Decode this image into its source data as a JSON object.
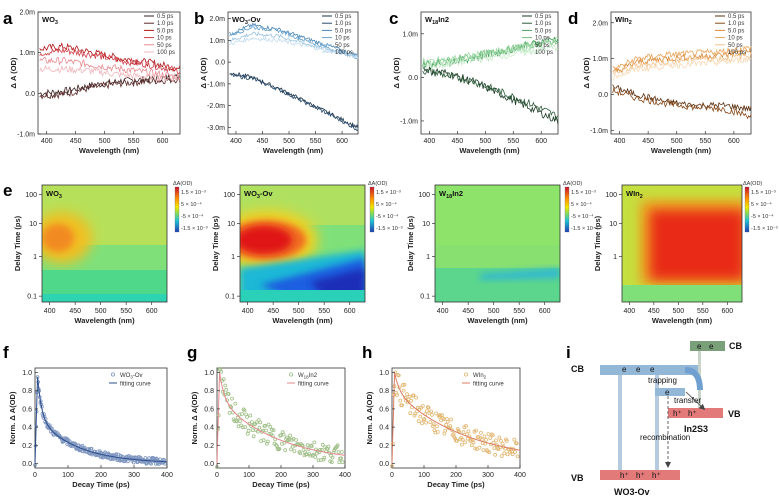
{
  "panel_letters": [
    "a",
    "b",
    "c",
    "d",
    "e",
    "f",
    "g",
    "h",
    "i"
  ],
  "axis_labels": {
    "delta_a": "Δ A (OD)",
    "wavelength": "Wavelength (nm)",
    "delay_time": "Delay Time (ps)",
    "norm_delta_a": "Norm. Δ A(OD)",
    "decay_time": "Decay Time (ps)"
  },
  "spectra_legend": [
    "0.5 ps",
    "1.0 ps",
    "5.0 ps",
    "10 ps",
    "50 ps",
    "100 ps"
  ],
  "colors": {
    "a": [
      "#3a2020",
      "#5a2828",
      "#b01818",
      "#cf3f4a",
      "#e58a90",
      "#f0b8bc"
    ],
    "b": [
      "#183048",
      "#2a4c6c",
      "#4a86b8",
      "#6aa3cc",
      "#98c2e0",
      "#c2dcef"
    ],
    "c": [
      "#1a3a24",
      "#2e5c3a",
      "#4aa060",
      "#72c07e",
      "#a2dcaa",
      "#c6ecca"
    ],
    "d": [
      "#5a3010",
      "#8a4a1a",
      "#d88a3a",
      "#e8a45a",
      "#f2c08a",
      "#f7d8b4"
    ],
    "f_scatter": "#7f96c0",
    "g_scatter": "#9fbf87",
    "h_scatter": "#e2b772",
    "f_fit": "#2b4c8c",
    "g_fit": "#e28a8a",
    "h_fit": "#d97c63"
  },
  "chart_data": [
    {
      "panel": "a",
      "type": "line",
      "title": "WO3",
      "xlabel": "Wavelength (nm)",
      "ylabel": "Δ A (OD)",
      "xlim": [
        385,
        630
      ],
      "ylim": [
        -1.0,
        2.0
      ],
      "x_ticks": [
        "400",
        "450",
        "500",
        "550",
        "600"
      ],
      "y_ticks": [
        {
          "v": -1,
          "t": "-1.0m"
        },
        {
          "v": 0,
          "t": "0.0"
        },
        {
          "v": 1,
          "t": "1.0m"
        },
        {
          "v": 2,
          "t": "2.0m"
        }
      ],
      "series": [
        {
          "name": "0.5 ps",
          "values": [
            [
              390,
              0.0
            ],
            [
              430,
              0.05
            ],
            [
              480,
              0.2
            ],
            [
              530,
              0.3
            ],
            [
              580,
              0.35
            ],
            [
              630,
              0.4
            ]
          ]
        },
        {
          "name": "1.0 ps",
          "values": [
            [
              390,
              -0.05
            ],
            [
              430,
              -0.02
            ],
            [
              480,
              0.15
            ],
            [
              530,
              0.25
            ],
            [
              580,
              0.3
            ],
            [
              630,
              0.35
            ]
          ]
        },
        {
          "name": "5.0 ps",
          "values": [
            [
              390,
              1.1
            ],
            [
              430,
              1.15
            ],
            [
              480,
              1.0
            ],
            [
              530,
              0.85
            ],
            [
              580,
              0.75
            ],
            [
              630,
              0.6
            ]
          ]
        },
        {
          "name": "10 ps",
          "values": [
            [
              390,
              1.0
            ],
            [
              430,
              1.05
            ],
            [
              480,
              0.95
            ],
            [
              530,
              0.8
            ],
            [
              580,
              0.7
            ],
            [
              630,
              0.55
            ]
          ]
        },
        {
          "name": "50 ps",
          "values": [
            [
              390,
              0.8
            ],
            [
              430,
              0.8
            ],
            [
              480,
              0.7
            ],
            [
              530,
              0.6
            ],
            [
              580,
              0.5
            ],
            [
              630,
              0.4
            ]
          ]
        },
        {
          "name": "100 ps",
          "values": [
            [
              390,
              0.6
            ],
            [
              430,
              0.6
            ],
            [
              480,
              0.55
            ],
            [
              530,
              0.45
            ],
            [
              580,
              0.4
            ],
            [
              630,
              0.35
            ]
          ]
        }
      ]
    },
    {
      "panel": "b",
      "type": "line",
      "title": "WO3-Ov",
      "xlabel": "Wavelength (nm)",
      "ylabel": "Δ A (OD)",
      "xlim": [
        385,
        630
      ],
      "ylim": [
        -3.3,
        2.3
      ],
      "x_ticks": [
        "400",
        "450",
        "500",
        "550",
        "600"
      ],
      "y_ticks": [
        {
          "v": 2,
          "t": "2.0m"
        },
        {
          "v": 1,
          "t": "1.0m"
        },
        {
          "v": 0,
          "t": "0.0"
        },
        {
          "v": -1,
          "t": "-1.0m"
        },
        {
          "v": -2,
          "t": "-2.0m"
        },
        {
          "v": -3,
          "t": "-3.0m"
        }
      ],
      "series": [
        {
          "name": "0.5 ps",
          "values": [
            [
              390,
              -0.5
            ],
            [
              430,
              -0.7
            ],
            [
              480,
              -1.2
            ],
            [
              530,
              -1.8
            ],
            [
              580,
              -2.4
            ],
            [
              630,
              -3.0
            ]
          ]
        },
        {
          "name": "1.0 ps",
          "values": [
            [
              390,
              -0.6
            ],
            [
              430,
              -0.75
            ],
            [
              480,
              -1.25
            ],
            [
              530,
              -1.85
            ],
            [
              580,
              -2.45
            ],
            [
              630,
              -3.1
            ]
          ]
        },
        {
          "name": "5.0 ps",
          "values": [
            [
              390,
              1.3
            ],
            [
              430,
              1.7
            ],
            [
              480,
              1.5
            ],
            [
              530,
              1.1
            ],
            [
              580,
              0.7
            ],
            [
              630,
              0.3
            ]
          ]
        },
        {
          "name": "10 ps",
          "values": [
            [
              390,
              1.25
            ],
            [
              430,
              1.6
            ],
            [
              480,
              1.45
            ],
            [
              530,
              1.0
            ],
            [
              580,
              0.6
            ],
            [
              630,
              0.2
            ]
          ]
        },
        {
          "name": "50 ps",
          "values": [
            [
              390,
              1.0
            ],
            [
              430,
              1.3
            ],
            [
              480,
              1.2
            ],
            [
              530,
              0.85
            ],
            [
              580,
              0.55
            ],
            [
              630,
              0.25
            ]
          ]
        },
        {
          "name": "100 ps",
          "values": [
            [
              390,
              0.85
            ],
            [
              430,
              1.1
            ],
            [
              480,
              1.0
            ],
            [
              530,
              0.75
            ],
            [
              580,
              0.5
            ],
            [
              630,
              0.25
            ]
          ]
        }
      ]
    },
    {
      "panel": "c",
      "type": "line",
      "title": "W18In2",
      "xlabel": "Wavelength (nm)",
      "ylabel": "Δ A (OD)",
      "xlim": [
        385,
        630
      ],
      "ylim": [
        -1.3,
        1.5
      ],
      "x_ticks": [
        "400",
        "450",
        "500",
        "550",
        "600"
      ],
      "y_ticks": [
        {
          "v": 1,
          "t": "1.0m"
        },
        {
          "v": 0,
          "t": "0.0"
        },
        {
          "v": -1,
          "t": "-1.0m"
        }
      ],
      "series": [
        {
          "name": "0.5 ps",
          "values": [
            [
              390,
              0.2
            ],
            [
              430,
              0.1
            ],
            [
              480,
              -0.1
            ],
            [
              530,
              -0.4
            ],
            [
              580,
              -0.7
            ],
            [
              630,
              -1.0
            ]
          ]
        },
        {
          "name": "1.0 ps",
          "values": [
            [
              390,
              0.15
            ],
            [
              430,
              0.05
            ],
            [
              480,
              -0.1
            ],
            [
              530,
              -0.35
            ],
            [
              580,
              -0.6
            ],
            [
              630,
              -0.9
            ]
          ]
        },
        {
          "name": "5.0 ps",
          "values": [
            [
              390,
              0.3
            ],
            [
              430,
              0.35
            ],
            [
              480,
              0.45
            ],
            [
              530,
              0.6
            ],
            [
              580,
              0.75
            ],
            [
              630,
              0.9
            ]
          ]
        },
        {
          "name": "10 ps",
          "values": [
            [
              390,
              0.3
            ],
            [
              430,
              0.35
            ],
            [
              480,
              0.5
            ],
            [
              530,
              0.6
            ],
            [
              580,
              0.75
            ],
            [
              630,
              0.85
            ]
          ]
        },
        {
          "name": "50 ps",
          "values": [
            [
              390,
              0.35
            ],
            [
              430,
              0.4
            ],
            [
              480,
              0.5
            ],
            [
              530,
              0.6
            ],
            [
              580,
              0.7
            ],
            [
              630,
              0.85
            ]
          ]
        },
        {
          "name": "100 ps",
          "values": [
            [
              390,
              0.25
            ],
            [
              430,
              0.3
            ],
            [
              480,
              0.4
            ],
            [
              530,
              0.5
            ],
            [
              580,
              0.6
            ],
            [
              630,
              0.7
            ]
          ]
        }
      ]
    },
    {
      "panel": "d",
      "type": "line",
      "title": "WIn2",
      "xlabel": "Wavelength (nm)",
      "ylabel": "Δ A (OD)",
      "xlim": [
        385,
        630
      ],
      "ylim": [
        -1.1,
        2.3
      ],
      "x_ticks": [
        "400",
        "450",
        "500",
        "550",
        "600"
      ],
      "y_ticks": [
        {
          "v": 2,
          "t": "2.0m"
        },
        {
          "v": 1,
          "t": "1.0m"
        },
        {
          "v": 0,
          "t": "0.0"
        },
        {
          "v": -1,
          "t": "-1.0m"
        }
      ],
      "series": [
        {
          "name": "0.5 ps",
          "values": [
            [
              390,
              0.2
            ],
            [
              430,
              0.0
            ],
            [
              480,
              -0.2
            ],
            [
              530,
              -0.3
            ],
            [
              580,
              -0.3
            ],
            [
              630,
              -0.4
            ]
          ]
        },
        {
          "name": "1.0 ps",
          "values": [
            [
              390,
              0.1
            ],
            [
              430,
              -0.1
            ],
            [
              480,
              -0.25
            ],
            [
              530,
              -0.35
            ],
            [
              580,
              -0.4
            ],
            [
              630,
              -0.6
            ]
          ]
        },
        {
          "name": "5.0 ps",
          "values": [
            [
              390,
              0.6
            ],
            [
              430,
              0.9
            ],
            [
              480,
              1.0
            ],
            [
              530,
              1.05
            ],
            [
              580,
              1.1
            ],
            [
              630,
              1.2
            ]
          ]
        },
        {
          "name": "10 ps",
          "values": [
            [
              390,
              0.7
            ],
            [
              430,
              1.0
            ],
            [
              480,
              1.1
            ],
            [
              530,
              1.15
            ],
            [
              580,
              1.2
            ],
            [
              630,
              1.3
            ]
          ]
        },
        {
          "name": "50 ps",
          "values": [
            [
              390,
              0.6
            ],
            [
              430,
              0.8
            ],
            [
              480,
              0.9
            ],
            [
              530,
              1.0
            ],
            [
              580,
              1.0
            ],
            [
              630,
              1.1
            ]
          ]
        },
        {
          "name": "100 ps",
          "values": [
            [
              390,
              0.5
            ],
            [
              430,
              0.7
            ],
            [
              480,
              0.8
            ],
            [
              530,
              0.85
            ],
            [
              580,
              0.9
            ],
            [
              630,
              1.0
            ]
          ]
        }
      ]
    },
    {
      "panel": "e1",
      "type": "heatmap",
      "title": "WO3",
      "xlabel": "Wavelength (nm)",
      "ylabel": "Delay Time (ps)",
      "x_ticks": [
        "400",
        "450",
        "500",
        "550",
        "600"
      ],
      "y_ticks": [
        "100",
        "10",
        "1",
        "0.1"
      ],
      "colorbar": {
        "title": "ΔA(OD)",
        "ticks": [
          "1.5 × 10⁻³",
          "5 × 10⁻⁴",
          "-5 × 10⁻⁴",
          "-1.5 × 10⁻³"
        ]
      }
    },
    {
      "panel": "e2",
      "type": "heatmap",
      "title": "WO3-Ov",
      "xlabel": "Wavelength (nm)",
      "ylabel": "Delay Time (ps)",
      "x_ticks": [
        "400",
        "450",
        "500",
        "550",
        "600"
      ],
      "y_ticks": [
        "100",
        "10",
        "1",
        "0.1"
      ],
      "colorbar": {
        "title": "ΔA(OD)",
        "ticks": [
          "1.5 × 10⁻³",
          "5 × 10⁻⁴",
          "-5 × 10⁻⁴",
          "-1.5 × 10⁻³"
        ]
      }
    },
    {
      "panel": "e3",
      "type": "heatmap",
      "title": "W18In2",
      "xlabel": "Wavelength (nm)",
      "ylabel": "Delay Time (ps)",
      "x_ticks": [
        "400",
        "450",
        "500",
        "550",
        "600"
      ],
      "y_ticks": [
        "100",
        "10",
        "1",
        "0.1"
      ],
      "colorbar": {
        "title": "ΔA(OD)",
        "ticks": [
          "1.5 × 10⁻³",
          "5 × 10⁻⁴",
          "-5 × 10⁻⁴",
          "-1.5 × 10⁻³"
        ]
      }
    },
    {
      "panel": "e4",
      "type": "heatmap",
      "title": "WIn2",
      "xlabel": "Wavelength (nm)",
      "ylabel": "Delay Time (ps)",
      "x_ticks": [
        "400",
        "450",
        "500",
        "550",
        "600"
      ],
      "y_ticks": [
        "100",
        "10",
        "1"
      ],
      "colorbar": {
        "title": "ΔA(OD)",
        "ticks": [
          "1.5 × 10⁻³",
          "5 × 10⁻⁴",
          "-5 × 10⁻⁴",
          "-1.5 × 10⁻³"
        ]
      }
    },
    {
      "panel": "f",
      "type": "scatter",
      "xlabel": "Decay Time (ps)",
      "ylabel": "Norm. Δ A(OD)",
      "xlim": [
        0,
        400
      ],
      "ylim": [
        -0.05,
        1.05
      ],
      "x_ticks": [
        "0",
        "100",
        "200",
        "300",
        "400"
      ],
      "y_ticks": [
        "0.0",
        "0.2",
        "0.4",
        "0.6",
        "0.8",
        "1.0"
      ],
      "legend": [
        "WO3-Ov",
        "fitting curve"
      ],
      "fit": {
        "A1": 0.45,
        "tau1": 12,
        "A2": 0.5,
        "tau2": 120,
        "peak_ps": 8
      }
    },
    {
      "panel": "g",
      "type": "scatter",
      "xlabel": "Decay Time (ps)",
      "ylabel": "Norm. Δ A(OD)",
      "xlim": [
        0,
        400
      ],
      "ylim": [
        -0.05,
        1.05
      ],
      "x_ticks": [
        "0",
        "100",
        "200",
        "300",
        "400"
      ],
      "y_ticks": [
        "0.0",
        "0.2",
        "0.4",
        "0.6",
        "0.8",
        "1.0"
      ],
      "legend": [
        "W18In2",
        "fitting curve"
      ],
      "fit": {
        "A1": 0.3,
        "tau1": 15,
        "A2": 0.7,
        "tau2": 190,
        "peak_ps": 8
      }
    },
    {
      "panel": "h",
      "type": "scatter",
      "xlabel": "Decay Time (ps)",
      "ylabel": "Norm. Δ A(OD)",
      "xlim": [
        0,
        400
      ],
      "ylim": [
        -0.05,
        1.05
      ],
      "x_ticks": [
        "0",
        "100",
        "200",
        "300",
        "400"
      ],
      "y_ticks": [
        "0.0",
        "0.2",
        "0.4",
        "0.6",
        "0.8",
        "1.0"
      ],
      "legend": [
        "WIn2",
        "fitting curve"
      ],
      "fit": {
        "A1": 0.2,
        "tau1": 15,
        "A2": 0.8,
        "tau2": 230,
        "peak_ps": 8
      }
    }
  ],
  "diagram_i": {
    "cb_left": "CB",
    "vb_left": "VB",
    "cb_right": "CB",
    "vb_right": "VB",
    "trapping": "trapping",
    "transfer": "transfer",
    "recombination": "recombination",
    "electron": "e",
    "hole": "h⁺",
    "wo3_label": "WO3-Ov",
    "in2s3_label": "In2S3"
  }
}
